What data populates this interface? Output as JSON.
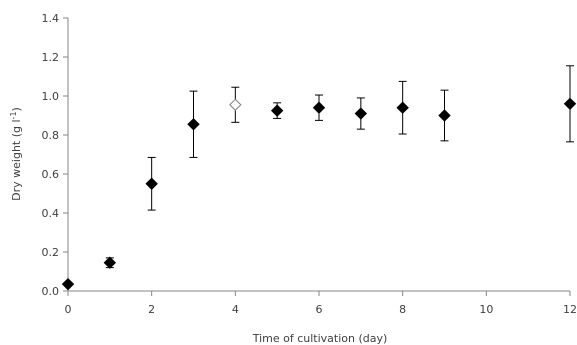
{
  "chart_data": {
    "type": "scatter",
    "title": "",
    "xlabel": "Time of cultivation (day)",
    "ylabel": "Dry weight (g l",
    "ylabel_superscript": "-1",
    "ylabel_close": ")",
    "xlim": [
      0,
      12
    ],
    "ylim": [
      0,
      1.4
    ],
    "x_ticks": [
      0,
      2,
      4,
      6,
      8,
      10,
      12
    ],
    "y_ticks": [
      0.0,
      0.2,
      0.4,
      0.6,
      0.8,
      1.0,
      1.2,
      1.4
    ],
    "y_tick_labels": [
      "0.0",
      "0.2",
      "0.4",
      "0.6",
      "0.8",
      "1.0",
      "1.2",
      "1.4"
    ],
    "grid": false,
    "legend": "none",
    "marker_color": "#000000",
    "series": [
      {
        "points": [
          {
            "x": 0,
            "y": 0.035,
            "err": 0.0,
            "hollow": false
          },
          {
            "x": 1,
            "y": 0.145,
            "err": 0.025,
            "hollow": false
          },
          {
            "x": 2,
            "y": 0.55,
            "err": 0.135,
            "hollow": false
          },
          {
            "x": 3,
            "y": 0.855,
            "err": 0.17,
            "hollow": false
          },
          {
            "x": 4,
            "y": 0.955,
            "err": 0.09,
            "hollow": true
          },
          {
            "x": 5,
            "y": 0.925,
            "err": 0.04,
            "hollow": false
          },
          {
            "x": 6,
            "y": 0.94,
            "err": 0.065,
            "hollow": false
          },
          {
            "x": 7,
            "y": 0.91,
            "err": 0.08,
            "hollow": false
          },
          {
            "x": 8,
            "y": 0.94,
            "err": 0.135,
            "hollow": false
          },
          {
            "x": 9,
            "y": 0.9,
            "err": 0.13,
            "hollow": false
          },
          {
            "x": 12,
            "y": 0.96,
            "err": 0.195,
            "hollow": false
          }
        ]
      }
    ]
  }
}
